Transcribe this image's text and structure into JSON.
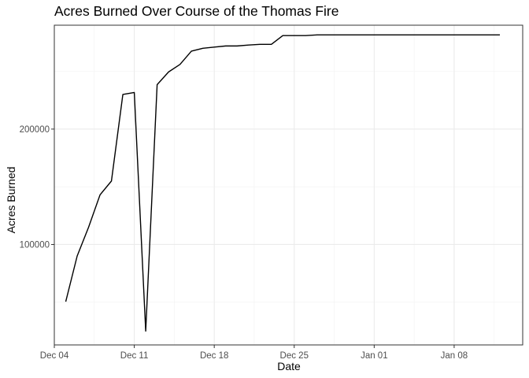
{
  "chart_data": {
    "type": "line",
    "title": "Acres Burned Over Course of the Thomas Fire",
    "xlabel": "Date",
    "ylabel": "Acres Burned",
    "x_ticks": [
      "Dec 04",
      "Dec 11",
      "Dec 18",
      "Dec 25",
      "Jan 01",
      "Jan 08"
    ],
    "y_ticks": [
      100000,
      200000
    ],
    "y_tick_labels": [
      "100000",
      "200000"
    ],
    "xlim": [
      "2017-12-04",
      "2018-01-14"
    ],
    "ylim": [
      13000,
      290000
    ],
    "grid": true,
    "legend": "none",
    "series": [
      {
        "color": "#000000",
        "x": [
          "2017-12-05",
          "2017-12-06",
          "2017-12-07",
          "2017-12-08",
          "2017-12-09",
          "2017-12-10",
          "2017-12-11",
          "2017-12-12",
          "2017-12-13",
          "2017-12-14",
          "2017-12-15",
          "2017-12-16",
          "2017-12-17",
          "2017-12-18",
          "2017-12-19",
          "2017-12-20",
          "2017-12-21",
          "2017-12-22",
          "2017-12-23",
          "2017-12-24",
          "2017-12-25",
          "2017-12-26",
          "2017-12-27",
          "2017-12-28",
          "2017-12-29",
          "2017-12-30",
          "2017-12-31",
          "2018-01-01",
          "2018-01-02",
          "2018-01-03",
          "2018-01-04",
          "2018-01-05",
          "2018-01-06",
          "2018-01-07",
          "2018-01-08",
          "2018-01-09",
          "2018-01-10",
          "2018-01-11",
          "2018-01-12"
        ],
        "y": [
          50500,
          90000,
          115000,
          143000,
          155000,
          230000,
          231700,
          25000,
          238500,
          249500,
          256000,
          267500,
          270000,
          271000,
          272000,
          272000,
          272800,
          273400,
          273400,
          281000,
          281000,
          281000,
          281600,
          281600,
          281600,
          281600,
          281600,
          281600,
          281600,
          281600,
          281600,
          281600,
          281600,
          281600,
          281600,
          281600,
          281600,
          281600,
          281600
        ]
      }
    ]
  }
}
